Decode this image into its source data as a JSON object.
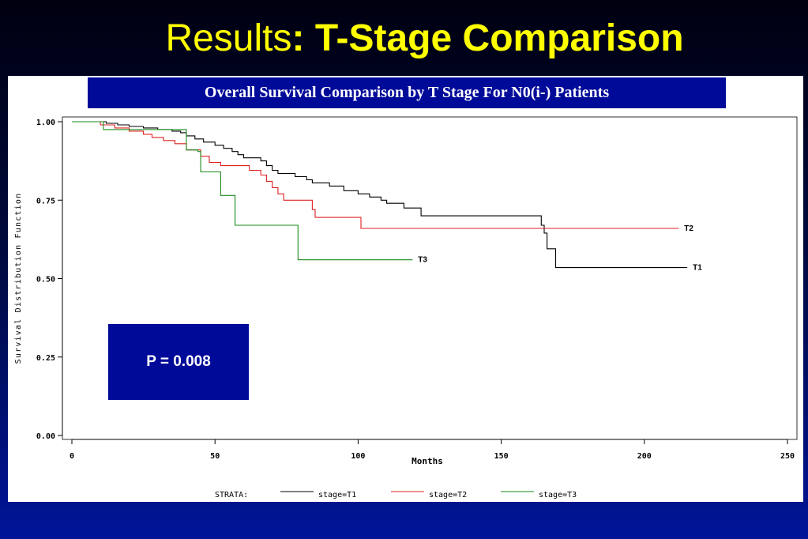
{
  "slide": {
    "title_regular": "Results",
    "title_bold": ": T-Stage Comparison",
    "title_color": "#ffff00"
  },
  "banner": {
    "text": "Overall Survival Comparison by T Stage For N0(i-) Patients"
  },
  "annotation": {
    "pvalue": "P = 0.008"
  },
  "chart_data": {
    "type": "line",
    "xlabel": "Months",
    "ylabel": "Survival Distribution Function",
    "xlim": [
      0,
      250
    ],
    "ylim": [
      0.0,
      1.0
    ],
    "xticks": [
      "0",
      "50",
      "100",
      "150",
      "200",
      "250"
    ],
    "yticks": [
      "0.00",
      "0.25",
      "0.50",
      "0.75",
      "1.00"
    ],
    "grid": false,
    "legend": {
      "position": "bottom",
      "title": "STRATA:",
      "entries": [
        "stage=T1",
        "stage=T2",
        "stage=T3"
      ]
    },
    "series": [
      {
        "name": "stage=T1",
        "end_label": "T1",
        "color": "#000000",
        "points": [
          [
            0,
            1.0
          ],
          [
            10,
            1.0
          ],
          [
            12,
            0.995
          ],
          [
            16,
            0.99
          ],
          [
            20,
            0.985
          ],
          [
            25,
            0.98
          ],
          [
            30,
            0.975
          ],
          [
            35,
            0.97
          ],
          [
            38,
            0.965
          ],
          [
            40,
            0.955
          ],
          [
            43,
            0.945
          ],
          [
            46,
            0.935
          ],
          [
            50,
            0.925
          ],
          [
            53,
            0.915
          ],
          [
            56,
            0.905
          ],
          [
            58,
            0.895
          ],
          [
            60,
            0.885
          ],
          [
            66,
            0.875
          ],
          [
            68,
            0.86
          ],
          [
            70,
            0.845
          ],
          [
            72,
            0.835
          ],
          [
            78,
            0.825
          ],
          [
            82,
            0.815
          ],
          [
            84,
            0.805
          ],
          [
            90,
            0.795
          ],
          [
            95,
            0.78
          ],
          [
            100,
            0.77
          ],
          [
            104,
            0.76
          ],
          [
            108,
            0.75
          ],
          [
            110,
            0.74
          ],
          [
            116,
            0.725
          ],
          [
            122,
            0.7
          ],
          [
            164,
            0.67
          ],
          [
            165,
            0.645
          ],
          [
            166,
            0.595
          ],
          [
            169,
            0.535
          ],
          [
            215,
            0.535
          ]
        ]
      },
      {
        "name": "stage=T2",
        "end_label": "T2",
        "color": "#e02020",
        "points": [
          [
            0,
            1.0
          ],
          [
            8,
            1.0
          ],
          [
            10,
            0.99
          ],
          [
            15,
            0.98
          ],
          [
            20,
            0.97
          ],
          [
            25,
            0.96
          ],
          [
            28,
            0.95
          ],
          [
            32,
            0.94
          ],
          [
            36,
            0.93
          ],
          [
            40,
            0.91
          ],
          [
            45,
            0.89
          ],
          [
            48,
            0.87
          ],
          [
            52,
            0.86
          ],
          [
            62,
            0.845
          ],
          [
            66,
            0.83
          ],
          [
            68,
            0.81
          ],
          [
            70,
            0.79
          ],
          [
            72,
            0.77
          ],
          [
            74,
            0.75
          ],
          [
            84,
            0.72
          ],
          [
            85,
            0.695
          ],
          [
            101,
            0.66
          ],
          [
            212,
            0.66
          ]
        ]
      },
      {
        "name": "stage=T3",
        "end_label": "T3",
        "color": "#1a8a1a",
        "points": [
          [
            0,
            1.0
          ],
          [
            10,
            1.0
          ],
          [
            11,
            0.975
          ],
          [
            39,
            0.975
          ],
          [
            40,
            0.91
          ],
          [
            44,
            0.905
          ],
          [
            45,
            0.84
          ],
          [
            51,
            0.84
          ],
          [
            52,
            0.765
          ],
          [
            56,
            0.765
          ],
          [
            57,
            0.67
          ],
          [
            78,
            0.67
          ],
          [
            79,
            0.56
          ],
          [
            119,
            0.56
          ]
        ]
      }
    ]
  }
}
